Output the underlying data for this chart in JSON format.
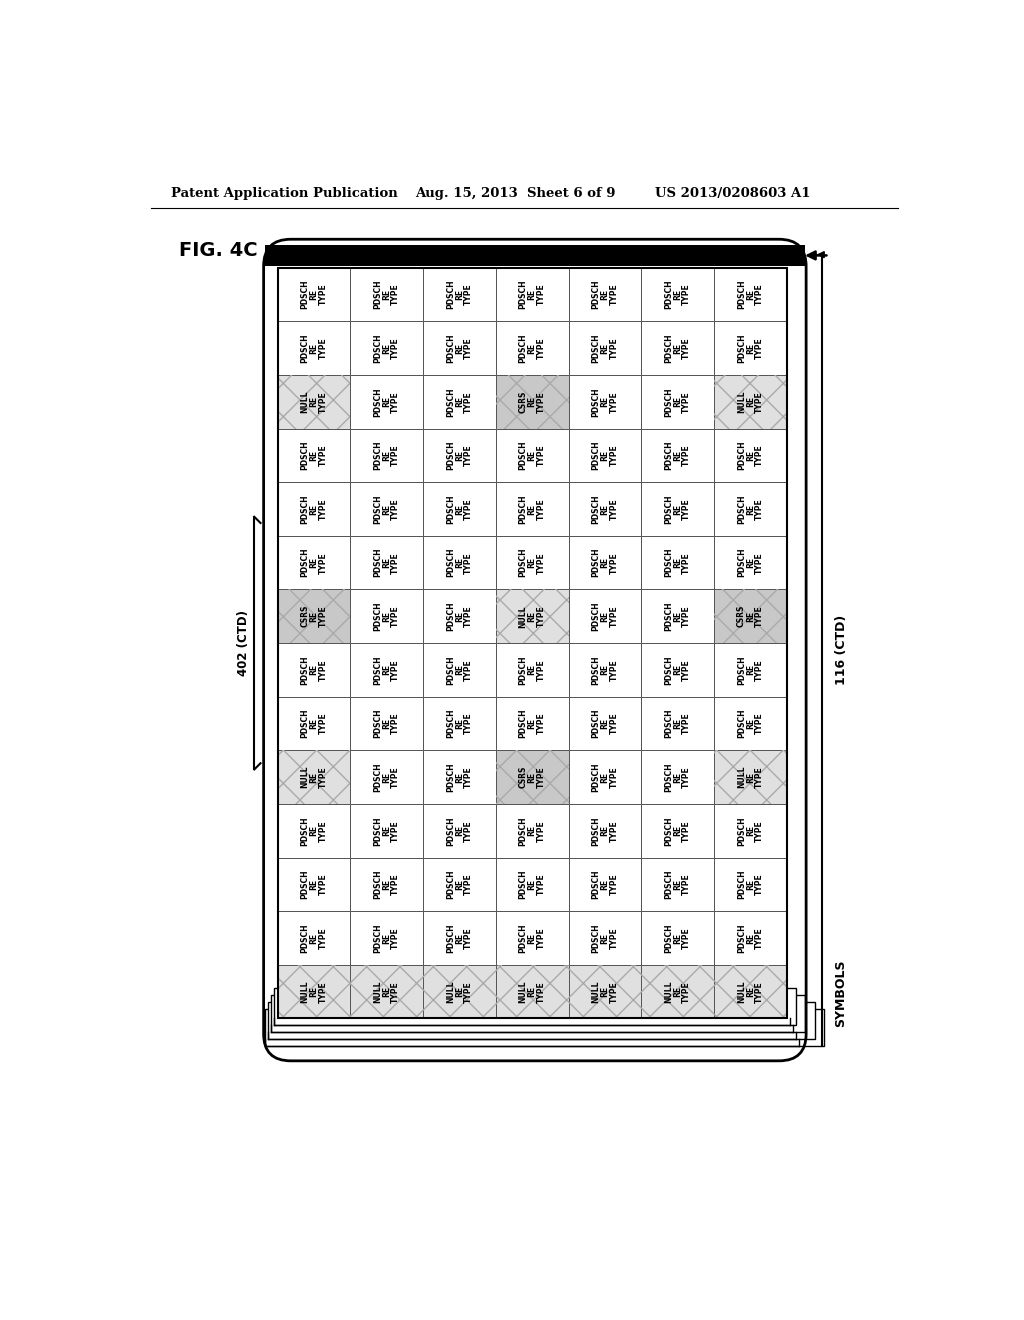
{
  "title": "FIG. 4C",
  "header_left": "Patent Application Publication",
  "header_mid": "Aug. 15, 2013  Sheet 6 of 9",
  "header_right": "US 2013/0208603 A1",
  "label_402": "402 (CTD)",
  "label_116": "116 (CTD)",
  "label_symbols": "SYMBOLS",
  "num_cols": 7,
  "num_rows": 14,
  "cell_content": [
    [
      "PDSCH\nRE\nTYPE",
      "PDSCH\nRE\nTYPE",
      "PDSCH\nRE\nTYPE",
      "PDSCH\nRE\nTYPE",
      "PDSCH\nRE\nTYPE",
      "PDSCH\nRE\nTYPE",
      "PDSCH\nRE\nTYPE"
    ],
    [
      "PDSCH\nRE\nTYPE",
      "PDSCH\nRE\nTYPE",
      "PDSCH\nRE\nTYPE",
      "PDSCH\nRE\nTYPE",
      "PDSCH\nRE\nTYPE",
      "PDSCH\nRE\nTYPE",
      "PDSCH\nRE\nTYPE"
    ],
    [
      "NULL\nRE\nTYPE",
      "PDSCH\nRE\nTYPE",
      "PDSCH\nRE\nTYPE",
      "CSRS\nRE\nTYPE",
      "PDSCH\nRE\nTYPE",
      "PDSCH\nRE\nTYPE",
      "NULL\nRE\nTYPE"
    ],
    [
      "PDSCH\nRE\nTYPE",
      "PDSCH\nRE\nTYPE",
      "PDSCH\nRE\nTYPE",
      "PDSCH\nRE\nTYPE",
      "PDSCH\nRE\nTYPE",
      "PDSCH\nRE\nTYPE",
      "PDSCH\nRE\nTYPE"
    ],
    [
      "PDSCH\nRE\nTYPE",
      "PDSCH\nRE\nTYPE",
      "PDSCH\nRE\nTYPE",
      "PDSCH\nRE\nTYPE",
      "PDSCH\nRE\nTYPE",
      "PDSCH\nRE\nTYPE",
      "PDSCH\nRE\nTYPE"
    ],
    [
      "PDSCH\nRE\nTYPE",
      "PDSCH\nRE\nTYPE",
      "PDSCH\nRE\nTYPE",
      "PDSCH\nRE\nTYPE",
      "PDSCH\nRE\nTYPE",
      "PDSCH\nRE\nTYPE",
      "PDSCH\nRE\nTYPE"
    ],
    [
      "CSRS\nRE\nTYPE",
      "PDSCH\nRE\nTYPE",
      "PDSCH\nRE\nTYPE",
      "NULL\nRE\nTYPE",
      "PDSCH\nRE\nTYPE",
      "PDSCH\nRE\nTYPE",
      "CSRS\nRE\nTYPE"
    ],
    [
      "PDSCH\nRE\nTYPE",
      "PDSCH\nRE\nTYPE",
      "PDSCH\nRE\nTYPE",
      "PDSCH\nRE\nTYPE",
      "PDSCH\nRE\nTYPE",
      "PDSCH\nRE\nTYPE",
      "PDSCH\nRE\nTYPE"
    ],
    [
      "PDSCH\nRE\nTYPE",
      "PDSCH\nRE\nTYPE",
      "PDSCH\nRE\nTYPE",
      "PDSCH\nRE\nTYPE",
      "PDSCH\nRE\nTYPE",
      "PDSCH\nRE\nTYPE",
      "PDSCH\nRE\nTYPE"
    ],
    [
      "NULL\nRE\nTYPE",
      "PDSCH\nRE\nTYPE",
      "PDSCH\nRE\nTYPE",
      "CSRS\nRE\nTYPE",
      "PDSCH\nRE\nTYPE",
      "PDSCH\nRE\nTYPE",
      "NULL\nRE\nTYPE"
    ],
    [
      "PDSCH\nRE\nTYPE",
      "PDSCH\nRE\nTYPE",
      "PDSCH\nRE\nTYPE",
      "PDSCH\nRE\nTYPE",
      "PDSCH\nRE\nTYPE",
      "PDSCH\nRE\nTYPE",
      "PDSCH\nRE\nTYPE"
    ],
    [
      "PDSCH\nRE\nTYPE",
      "PDSCH\nRE\nTYPE",
      "PDSCH\nRE\nTYPE",
      "PDSCH\nRE\nTYPE",
      "PDSCH\nRE\nTYPE",
      "PDSCH\nRE\nTYPE",
      "PDSCH\nRE\nTYPE"
    ],
    [
      "PDSCH\nRE\nTYPE",
      "PDSCH\nRE\nTYPE",
      "PDSCH\nRE\nTYPE",
      "PDSCH\nRE\nTYPE",
      "PDSCH\nRE\nTYPE",
      "PDSCH\nRE\nTYPE",
      "PDSCH\nRE\nTYPE"
    ],
    [
      "NULL\nRE\nTYPE",
      "NULL\nRE\nTYPE",
      "NULL\nRE\nTYPE",
      "NULL\nRE\nTYPE",
      "NULL\nRE\nTYPE",
      "NULL\nRE\nTYPE",
      "NULL\nRE\nTYPE"
    ]
  ],
  "bg_color": "#ffffff"
}
